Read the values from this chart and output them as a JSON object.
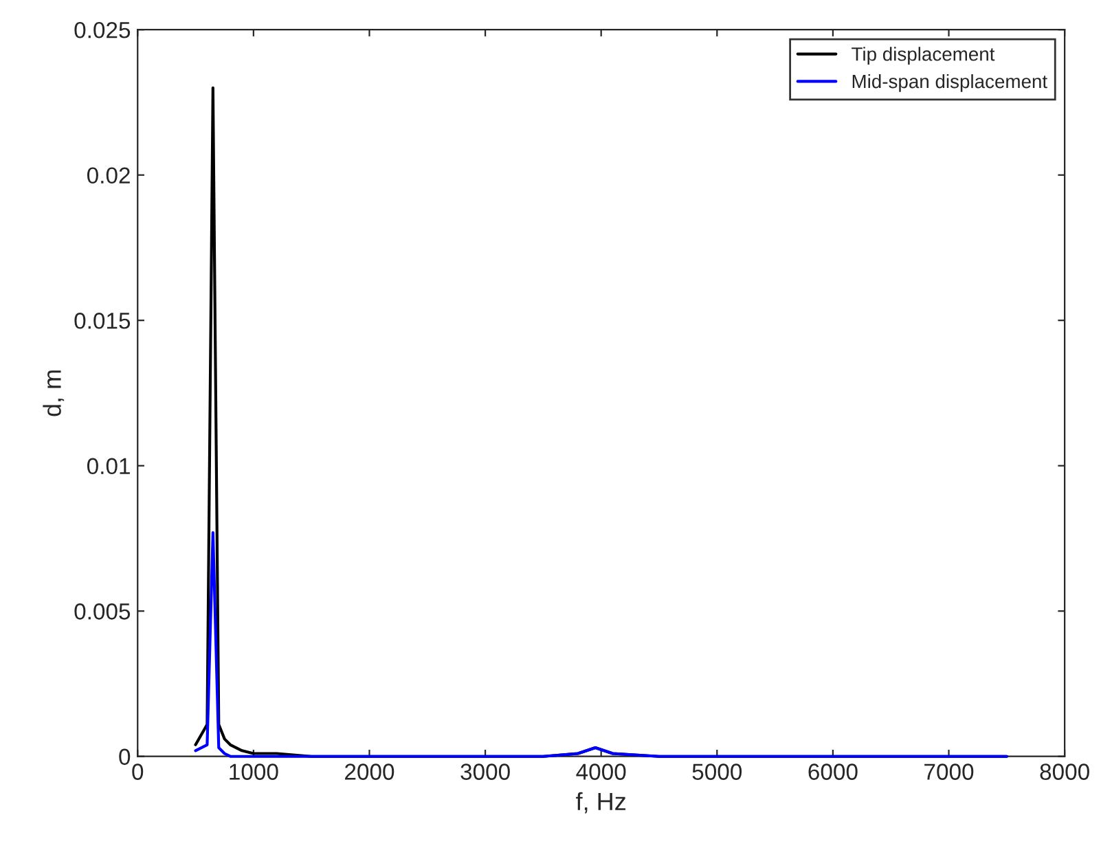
{
  "chart_data": {
    "type": "line",
    "xlabel": "f, Hz",
    "ylabel": "d, m",
    "series": [
      {
        "name": "Tip displacement",
        "color": "#000000",
        "x": [
          500,
          600,
          650,
          700,
          750,
          800,
          900,
          1000,
          1200,
          1500,
          2000,
          3000,
          3500,
          3800,
          3950,
          4100,
          4500,
          5000,
          6000,
          7000,
          7500
        ],
        "values": [
          0.0004,
          0.0011,
          0.023,
          0.0011,
          0.0006,
          0.0004,
          0.0002,
          0.0001,
          0.0001,
          0.0,
          0.0,
          0.0,
          0.0,
          0.0001,
          0.0003,
          0.0001,
          0.0,
          0.0,
          0.0,
          0.0,
          0.0
        ]
      },
      {
        "name": "Mid-span displacement",
        "color": "#0000ff",
        "x": [
          500,
          600,
          650,
          700,
          750,
          800,
          900,
          1000,
          1500,
          2000,
          3000,
          3500,
          3800,
          3950,
          4100,
          4500,
          5000,
          6000,
          7000,
          7500
        ],
        "values": [
          0.0002,
          0.0004,
          0.0077,
          0.0003,
          0.0001,
          0.0,
          0.0,
          0.0,
          0.0,
          0.0,
          0.0,
          0.0,
          0.0001,
          0.0003,
          0.0001,
          0.0,
          0.0,
          0.0,
          0.0,
          0.0
        ]
      }
    ],
    "xlim": [
      0,
      8000
    ],
    "xticks": [
      0,
      1000,
      2000,
      3000,
      4000,
      5000,
      6000,
      7000,
      8000
    ],
    "ylim": [
      0,
      0.025
    ],
    "yticks": [
      0,
      0.005,
      0.01,
      0.015,
      0.02,
      0.025
    ],
    "grid": false,
    "legend": "top right",
    "marker": "none",
    "line_style": "solid"
  }
}
